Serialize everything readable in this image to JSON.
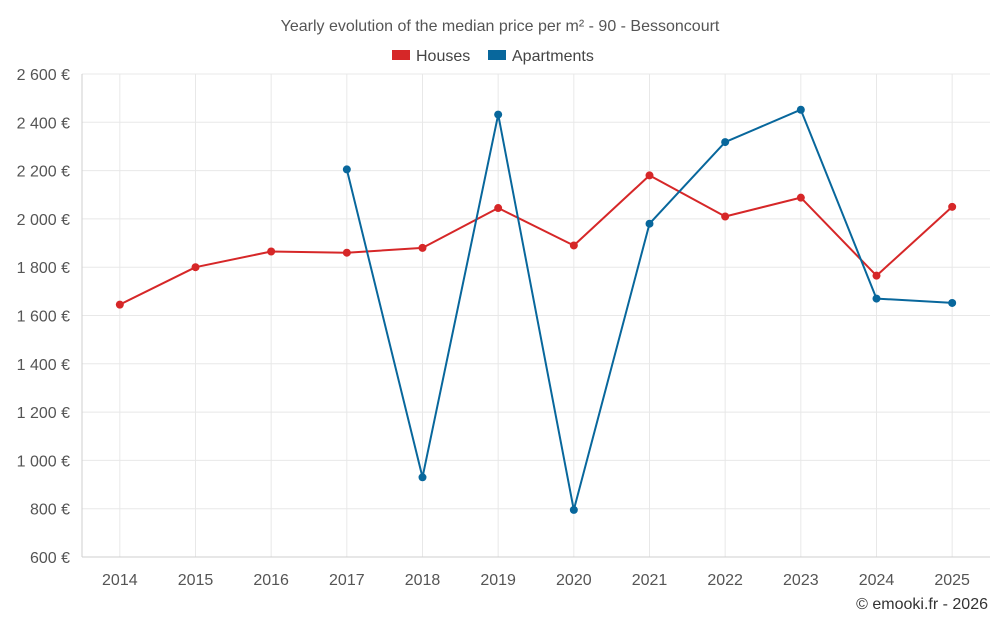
{
  "chart_data": {
    "type": "line",
    "title": "Yearly evolution of the median price per m² - 90 - Bessoncourt",
    "categories": [
      "2014",
      "2015",
      "2016",
      "2017",
      "2018",
      "2019",
      "2020",
      "2021",
      "2022",
      "2023",
      "2024",
      "2025"
    ],
    "ylim": [
      600,
      2600
    ],
    "yticks": [
      600,
      800,
      1000,
      1200,
      1400,
      1600,
      1800,
      2000,
      2200,
      2400,
      2600
    ],
    "ytick_labels": [
      "600 €",
      "800 €",
      "1 000 €",
      "1 200 €",
      "1 400 €",
      "1 600 €",
      "1 800 €",
      "2 000 €",
      "2 200 €",
      "2 400 €",
      "2 600 €"
    ],
    "grid": true,
    "legend_position": "top-center",
    "series": [
      {
        "name": "Houses",
        "color": "#d62728",
        "values": [
          1645,
          1800,
          1865,
          1860,
          1880,
          2045,
          1890,
          2180,
          2010,
          2088,
          1765,
          2050
        ]
      },
      {
        "name": "Apartments",
        "color": "#08679c",
        "values": [
          null,
          null,
          null,
          2205,
          930,
          2432,
          795,
          1980,
          2318,
          2452,
          1670,
          1652
        ]
      }
    ]
  },
  "credit": "© emooki.fr - 2026"
}
